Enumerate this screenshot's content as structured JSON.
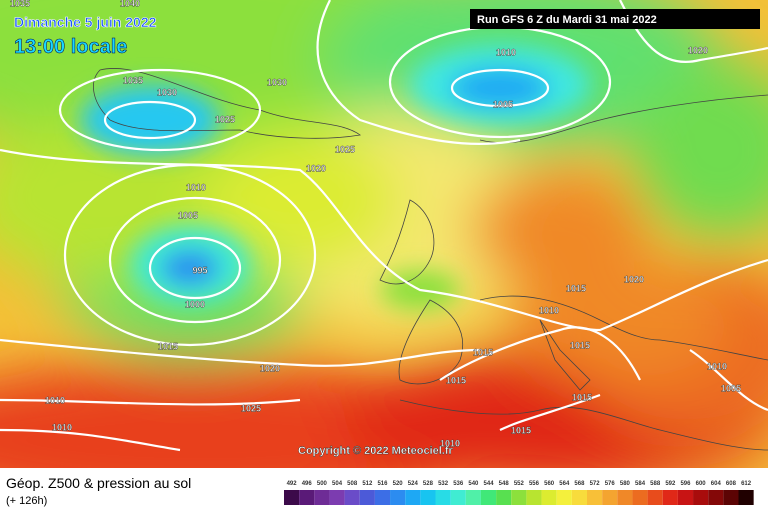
{
  "header": {
    "date": "Dimanche 5 juin 2022",
    "time": "13:00 locale",
    "run": "Run GFS 6 Z du Mardi 31 mai 2022"
  },
  "copyright": "Copyright © 2022 Meteociel.fr",
  "footer": {
    "title": "Géop. Z500 & pression au sol",
    "lead": "(+ 126h)"
  },
  "isobar_labels": [
    "1035",
    "1040",
    "1035",
    "1030",
    "1025",
    "1030",
    "1025",
    "1020",
    "1010",
    "1005",
    "1020",
    "1010",
    "1005",
    "995",
    "1000",
    "1020",
    "1015",
    "1010",
    "1015",
    "1015",
    "1015",
    "1020",
    "1015",
    "1010",
    "1005",
    "1015",
    "1025",
    "1010",
    "1010",
    "1015",
    "1010"
  ],
  "colorbar": {
    "labels": [
      492,
      496,
      500,
      504,
      508,
      512,
      516,
      520,
      524,
      528,
      532,
      536,
      540,
      544,
      548,
      552,
      556,
      560,
      564,
      568,
      572,
      576,
      580,
      584,
      588,
      592,
      596,
      600,
      604,
      608,
      612
    ],
    "colors": [
      "#3c0a4a",
      "#5a1a78",
      "#6e2c96",
      "#7c3cb0",
      "#6a4cc8",
      "#4c5ad8",
      "#3c6ee6",
      "#2c8cf0",
      "#1ea8f4",
      "#18c4f0",
      "#28dce6",
      "#40ecd2",
      "#50f0a8",
      "#40e878",
      "#58e050",
      "#8ce03c",
      "#b8e430",
      "#dcec30",
      "#f4f03c",
      "#f8dc3c",
      "#f8c038",
      "#f4a430",
      "#f08828",
      "#ec6c20",
      "#e84c1c",
      "#e02818",
      "#c81414",
      "#a80c0c",
      "#840808",
      "#5c0404",
      "#200000"
    ]
  }
}
